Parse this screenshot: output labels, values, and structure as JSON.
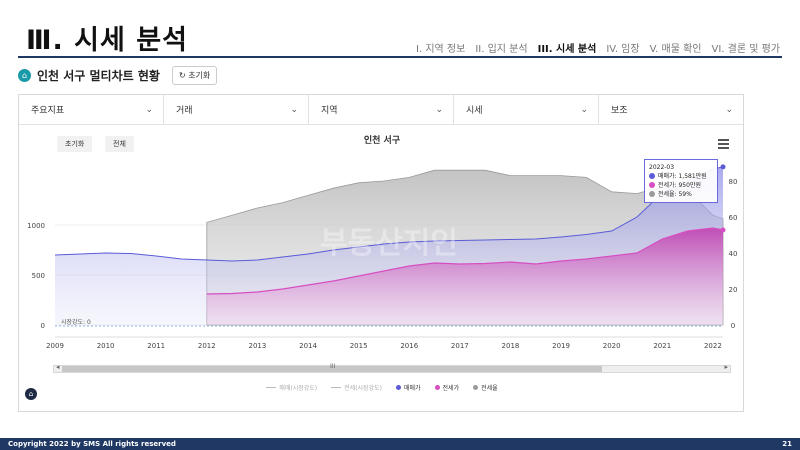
{
  "slide": {
    "title": "Ⅲ. 시세 분석"
  },
  "nav": [
    {
      "label": "I. 지역 정보",
      "active": false
    },
    {
      "label": "II. 입지 분석",
      "active": false
    },
    {
      "label": "III. 시세 분석",
      "active": true
    },
    {
      "label": "IV. 임장",
      "active": false
    },
    {
      "label": "V. 매물 확인",
      "active": false
    },
    {
      "label": "VI. 결론 및 평가",
      "active": false
    }
  ],
  "subhead": {
    "title": "인천 서구 멀티차트 현황",
    "reset_label": "초기화"
  },
  "filters": [
    "주요지표",
    "거래",
    "지역",
    "시세",
    "보조"
  ],
  "chart_controls": {
    "reset_label": "초기화",
    "all_label": "전체"
  },
  "tooltip": {
    "date": "2022-03",
    "rows": [
      {
        "label": "매매가: 1,581만원",
        "color": "#5b5bd6"
      },
      {
        "label": "전세가: 950만원",
        "color": "#d64fc2"
      },
      {
        "label": "전세율: 59%",
        "color": "#9a9a9a"
      }
    ]
  },
  "legend": [
    {
      "label": "매매(시장강도)",
      "color": "#bbbbbb",
      "kind": "line",
      "dim": true
    },
    {
      "label": "전세(시장강도)",
      "color": "#bbbbbb",
      "kind": "line",
      "dim": true
    },
    {
      "label": "매매가",
      "color": "#5b5bd6",
      "kind": "dot",
      "dim": false
    },
    {
      "label": "전세가",
      "color": "#d64fc2",
      "kind": "dot",
      "dim": false
    },
    {
      "label": "전세율",
      "color": "#9a9a9a",
      "kind": "dot",
      "dim": false
    }
  ],
  "scroll_grip": "III",
  "footer": {
    "copyright": "Copyright 2022 by SMS All rights reserved",
    "page": "21"
  },
  "chart_data": {
    "type": "area",
    "title": "인천 서구",
    "x_ticks": [
      "2009",
      "2010",
      "2011",
      "2012",
      "2013",
      "2014",
      "2015",
      "2016",
      "2017",
      "2018",
      "2019",
      "2020",
      "2021",
      "2022"
    ],
    "y_left": {
      "ticks": [
        0,
        500,
        1000
      ],
      "range": [
        0,
        1800
      ]
    },
    "y_right": {
      "ticks": [
        0,
        20,
        40,
        60,
        80
      ],
      "range": [
        0,
        100
      ]
    },
    "baseline_label": "시장강도: 0",
    "watermark": "부동산지인",
    "series": [
      {
        "name": "매매가",
        "color": "#5b5bd6",
        "x": [
          2009,
          2009.5,
          2010,
          2010.5,
          2011,
          2011.5,
          2012,
          2012.5,
          2013,
          2013.5,
          2014,
          2014.5,
          2015,
          2015.5,
          2016,
          2016.5,
          2017,
          2017.5,
          2018,
          2018.5,
          2019,
          2019.5,
          2020,
          2020.5,
          2021,
          2021.5,
          2022,
          2022.2
        ],
        "values": [
          700,
          710,
          720,
          715,
          690,
          660,
          650,
          640,
          650,
          680,
          710,
          750,
          780,
          810,
          830,
          840,
          845,
          850,
          855,
          860,
          880,
          905,
          940,
          1080,
          1320,
          1440,
          1560,
          1581
        ]
      },
      {
        "name": "전세가",
        "color": "#d64fc2",
        "x": [
          2012,
          2012.5,
          2013,
          2013.5,
          2014,
          2014.5,
          2015,
          2015.5,
          2016,
          2016.5,
          2017,
          2017.5,
          2018,
          2018.5,
          2019,
          2019.5,
          2020,
          2020.5,
          2021,
          2021.5,
          2022,
          2022.2
        ],
        "values": [
          310,
          315,
          330,
          360,
          400,
          440,
          490,
          540,
          590,
          620,
          610,
          615,
          630,
          610,
          640,
          660,
          690,
          720,
          860,
          940,
          970,
          950
        ]
      },
      {
        "name": "전세율",
        "color": "#9a9a9a",
        "x": [
          2012,
          2012.5,
          2013,
          2013.5,
          2014,
          2014.5,
          2015,
          2015.5,
          2016,
          2016.5,
          2017,
          2017.5,
          2018,
          2018.5,
          2019,
          2019.5,
          2020,
          2020.5,
          2021,
          2021.5,
          2022,
          2022.2
        ],
        "values": [
          57,
          61,
          65,
          68,
          72,
          76,
          79,
          80,
          82,
          86,
          86,
          86,
          83,
          83,
          83,
          82,
          74,
          73,
          77,
          75,
          61,
          59
        ]
      }
    ]
  }
}
